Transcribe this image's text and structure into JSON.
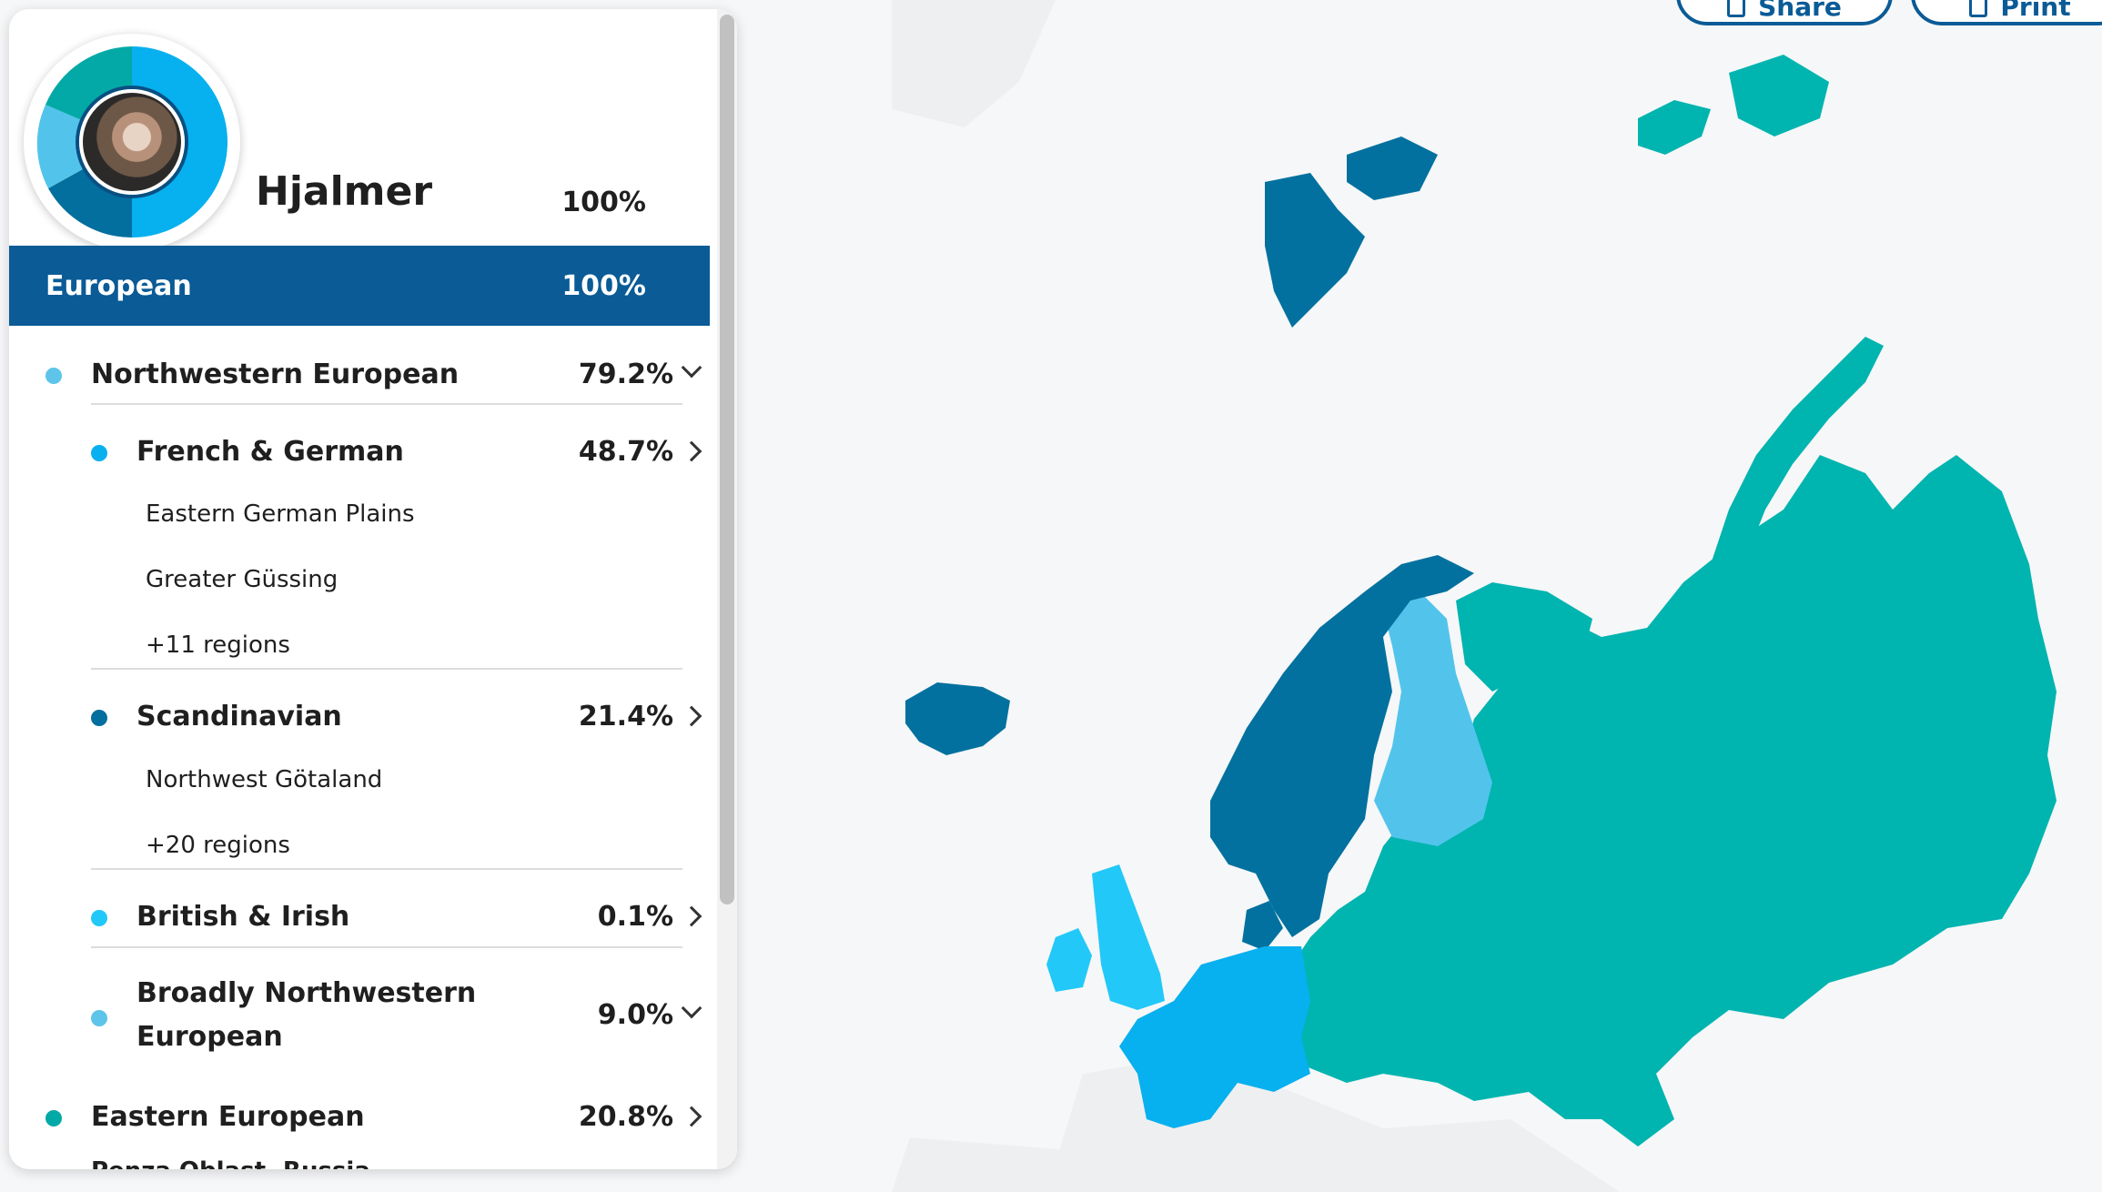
{
  "toolbar": {
    "share_label": "Share",
    "print_label": "Print"
  },
  "profile": {
    "name": "Hjalmer",
    "total_percent": "100%"
  },
  "top_band": {
    "label": "European",
    "percent": "100%"
  },
  "ethnicity": {
    "northwestern": {
      "label": "Northwestern European",
      "percent": "79.2%",
      "color": "#5ec4ea"
    },
    "french_german": {
      "label": "French & German",
      "percent": "48.7%",
      "color": "#08b0f0",
      "regions": [
        "Eastern German Plains",
        "Greater Güssing",
        "+11 regions"
      ]
    },
    "scandinavian": {
      "label": "Scandinavian",
      "percent": "21.4%",
      "color": "#036f9e",
      "regions": [
        "Northwest Götaland",
        "+20 regions"
      ]
    },
    "british_irish": {
      "label": "British & Irish",
      "percent": "0.1%",
      "color": "#22c8f8"
    },
    "broadly_nw": {
      "label_line1": "Broadly Northwestern",
      "label_line2": "European",
      "percent": "9.0%",
      "color": "#5ec4ea"
    },
    "eastern": {
      "label": "Eastern European",
      "percent": "20.8%",
      "color": "#03a9a6"
    },
    "cutoff_region": "Penza Oblast, Russia"
  },
  "map_colors": {
    "background": "#f6f7f8",
    "land_other": "#eeeff1",
    "eastern": "#00b4b0",
    "scandinavian": "#03719f",
    "finland": "#52c4ec",
    "french_german": "#07b0ee",
    "british": "#22c8f8"
  },
  "icons": {
    "share": "share-icon",
    "print": "print-icon",
    "dot": "bullet-dot-icon"
  }
}
